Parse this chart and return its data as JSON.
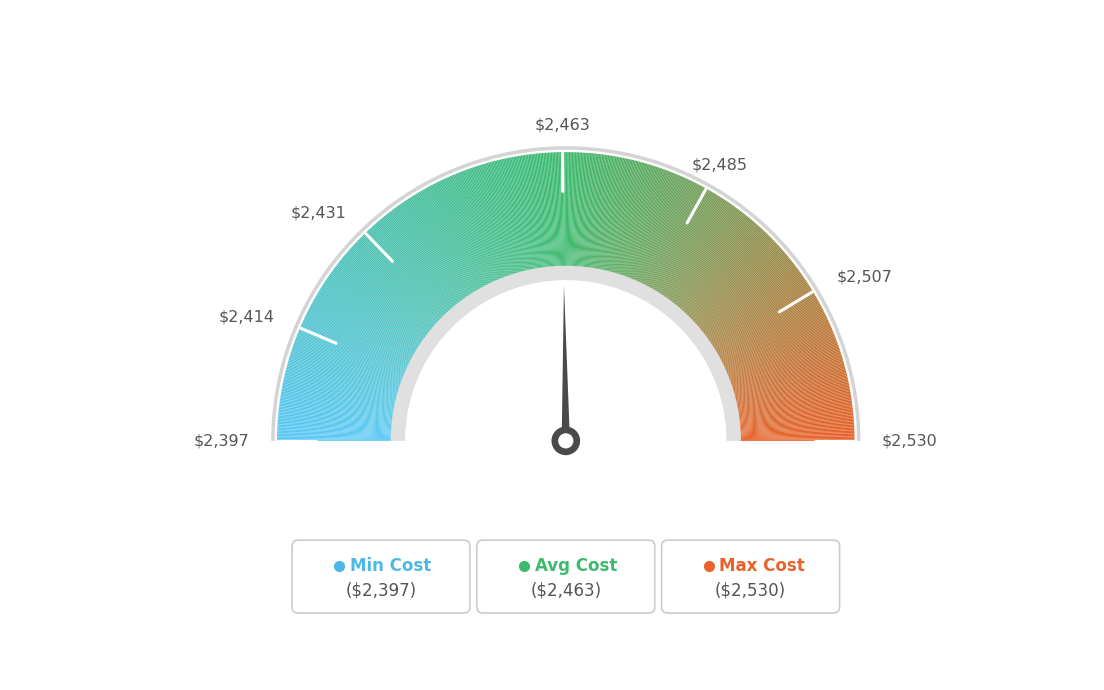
{
  "min_val": 2397,
  "avg_val": 2463,
  "max_val": 2530,
  "tick_labels": [
    "$2,397",
    "$2,414",
    "$2,431",
    "$2,463",
    "$2,485",
    "$2,507",
    "$2,530"
  ],
  "tick_values": [
    2397,
    2414,
    2431,
    2463,
    2485,
    2507,
    2530
  ],
  "legend_labels": [
    "Min Cost",
    "Avg Cost",
    "Max Cost"
  ],
  "legend_values": [
    "($2,397)",
    "($2,463)",
    "($2,530)"
  ],
  "legend_colors": [
    "#4db8e8",
    "#3dba6e",
    "#e8622a"
  ],
  "color_stops": [
    [
      0.0,
      "#5bc8f5"
    ],
    [
      0.5,
      "#3dba6e"
    ],
    [
      1.0,
      "#e8622a"
    ]
  ],
  "background_color": "#ffffff",
  "needle_color": "#4a4a4a",
  "gauge_border_color": "#d4d4d4",
  "gauge_inner_color": "#e0e0e0"
}
